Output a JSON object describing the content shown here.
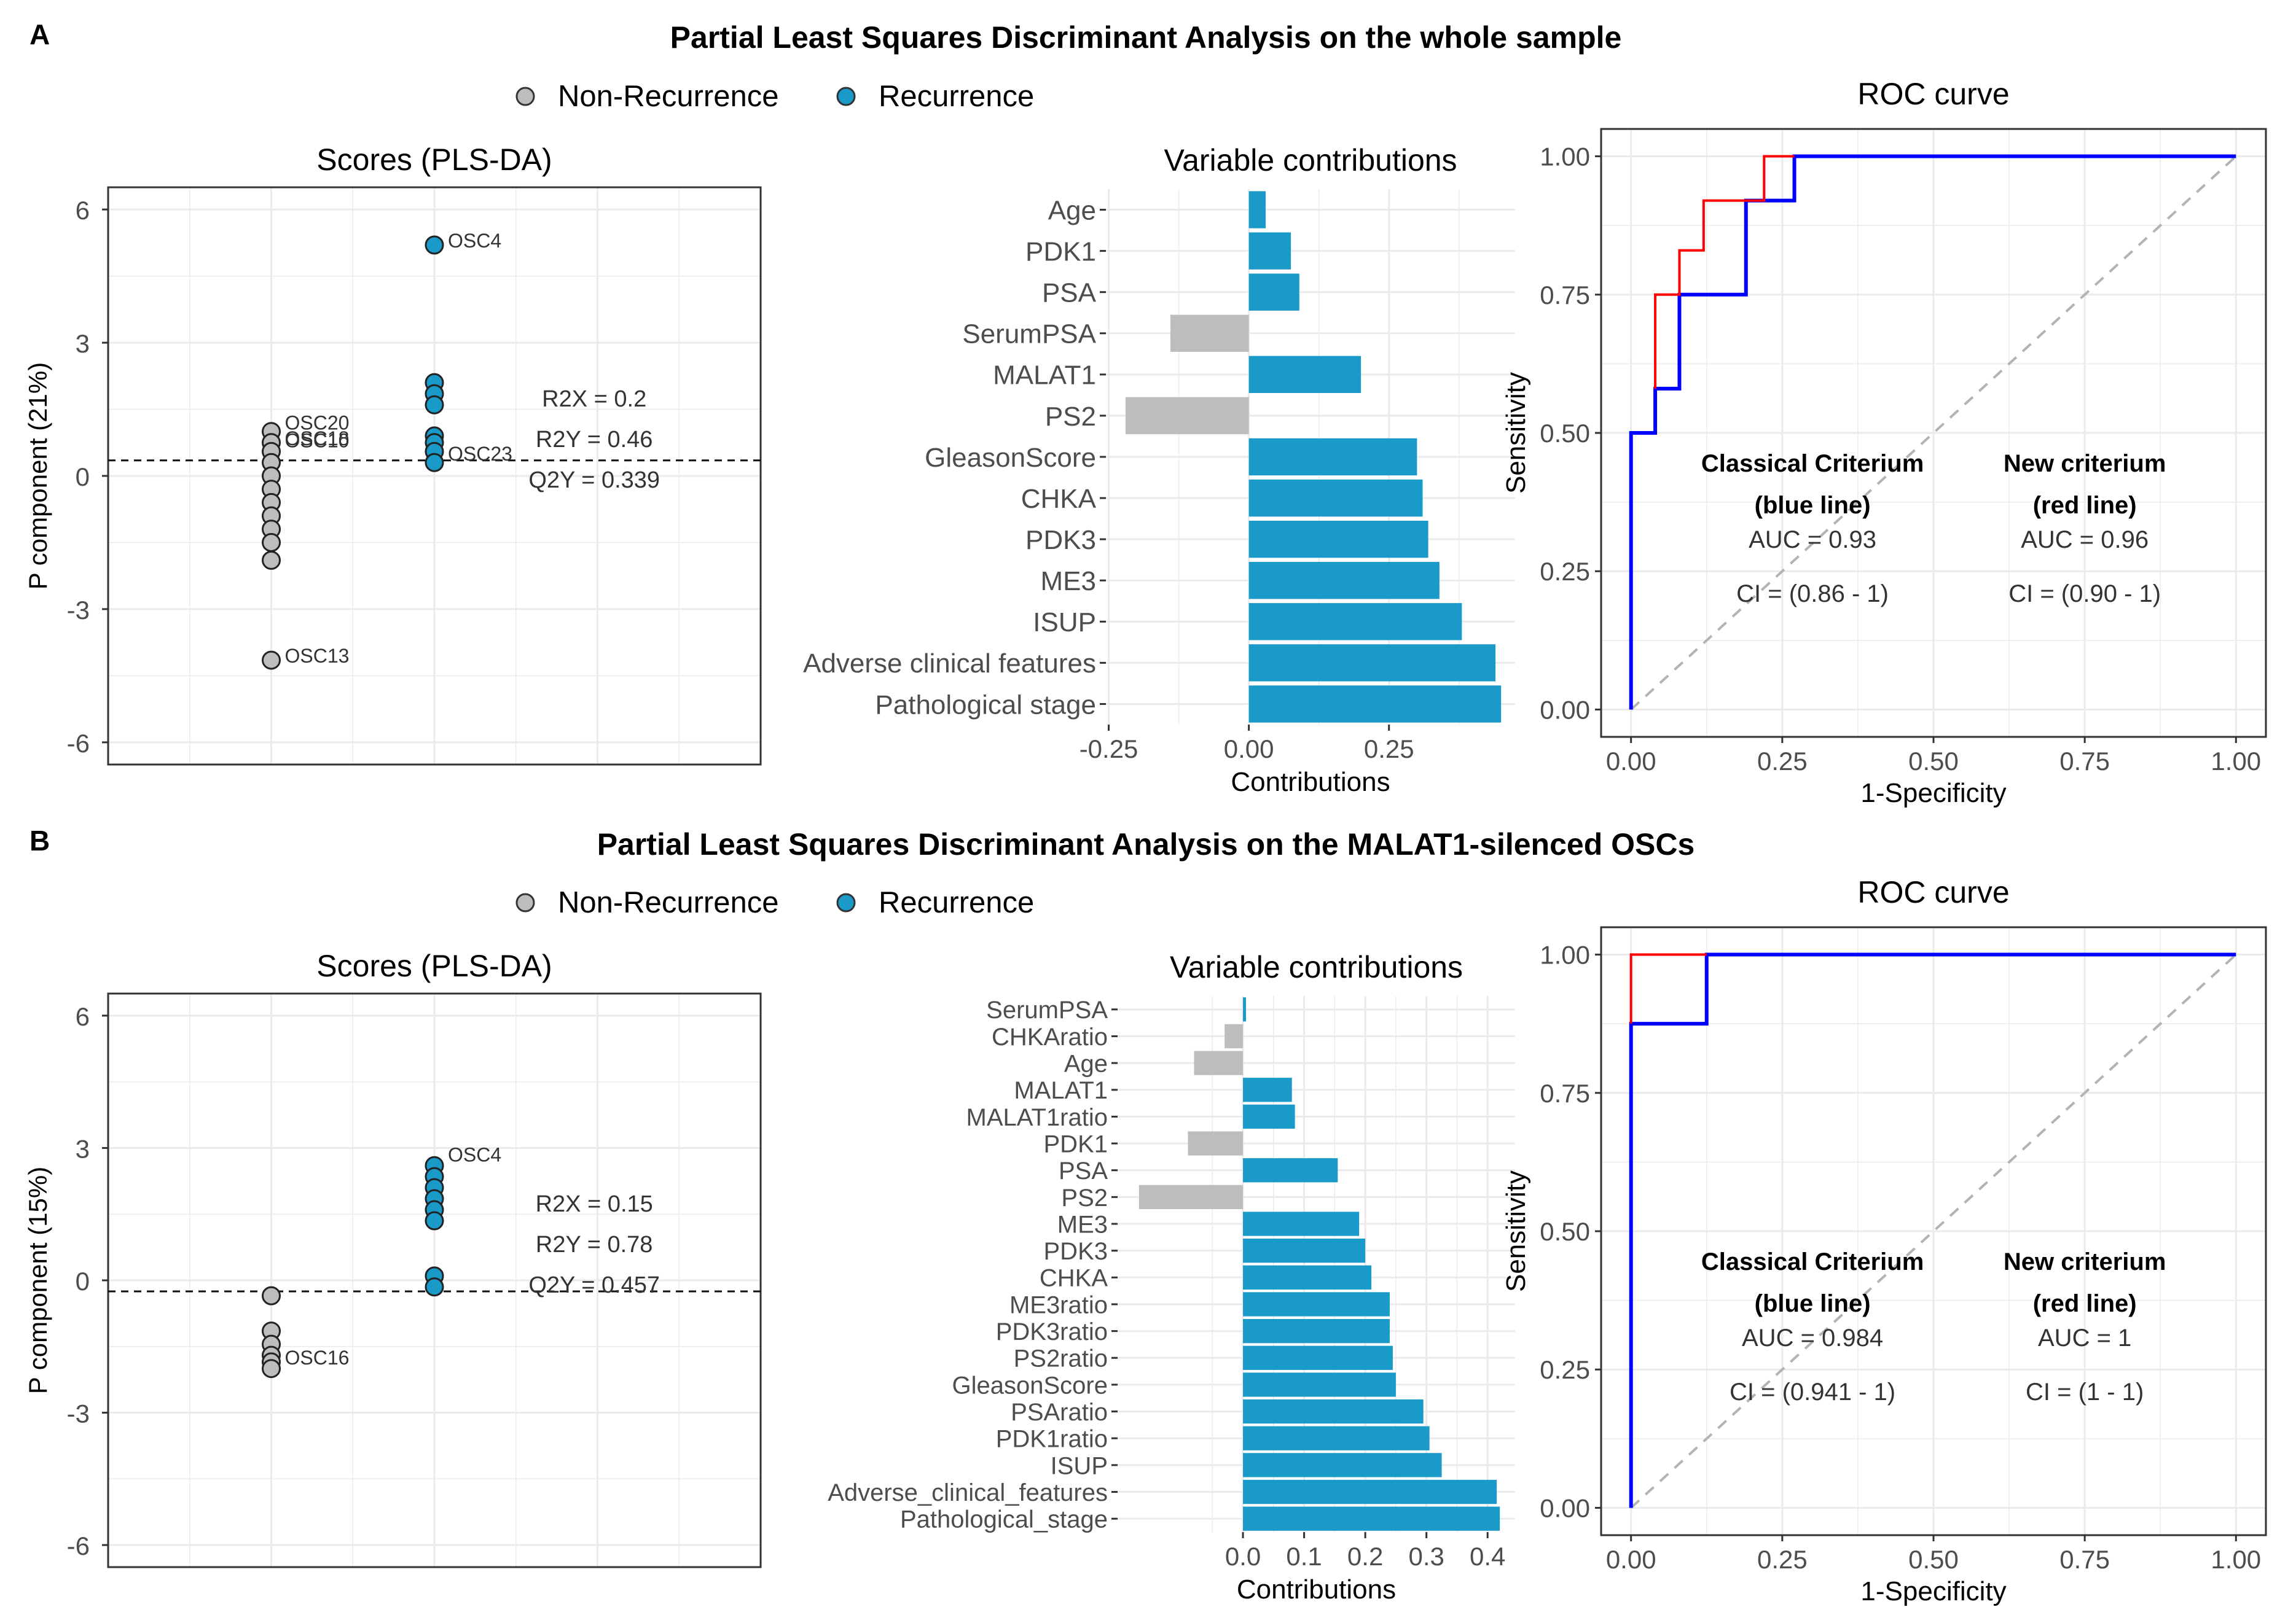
{
  "panels": [
    {
      "label": "A",
      "title": "Partial Least Squares Discriminant Analysis on the whole sample",
      "legend": [
        {
          "name": "Non-Recurrence",
          "color": "#bdbdbd"
        },
        {
          "name": "Recurrence",
          "color": "#1a9ac9"
        }
      ]
    },
    {
      "label": "B",
      "title": "Partial Least Squares Discriminant Analysis on the MALAT1-silenced OSCs",
      "legend": [
        {
          "name": "Non-Recurrence",
          "color": "#bdbdbd"
        },
        {
          "name": "Recurrence",
          "color": "#1a9ac9"
        }
      ]
    }
  ],
  "chart_data": [
    {
      "type": "scatter",
      "panel": "A",
      "title": "Scores (PLS-DA)",
      "ylabel": "P component (21%)",
      "xlabel": "",
      "ylim": [
        -6.5,
        6.5
      ],
      "yticks": [
        6,
        3,
        0,
        -3,
        -6
      ],
      "threshold": 0.35,
      "groups": [
        "Non-Recurrence",
        "Recurrence"
      ],
      "colors": {
        "Non-Recurrence": "#bdbdbd",
        "Recurrence": "#1a9ac9"
      },
      "series": [
        {
          "name": "Non-Recurrence",
          "values": [
            1.0,
            0.75,
            0.55,
            0.3,
            0.0,
            -0.3,
            -0.6,
            -0.9,
            -1.2,
            -1.5,
            -1.9,
            -4.15
          ]
        },
        {
          "name": "Recurrence",
          "values": [
            5.2,
            2.1,
            1.85,
            1.6,
            0.9,
            0.75,
            0.55,
            0.3
          ]
        }
      ],
      "point_labels": [
        {
          "text": "OSC4",
          "group": "Recurrence",
          "y": 5.2
        },
        {
          "text": "OSC20",
          "group": "Non-Recurrence",
          "y": 1.1
        },
        {
          "text": "OSC18",
          "group": "Non-Recurrence",
          "y": 0.75
        },
        {
          "text": "OSC10",
          "group": "Non-Recurrence",
          "y": 0.7
        },
        {
          "text": "OSC23",
          "group": "Recurrence",
          "y": 0.4
        },
        {
          "text": "OSC13",
          "group": "Non-Recurrence",
          "y": -4.15
        }
      ],
      "stats": [
        "R2X = 0.2",
        "R2Y = 0.46",
        "Q2Y = 0.339"
      ]
    },
    {
      "type": "bar",
      "panel": "A",
      "title": "Variable contributions",
      "xlabel": "Contributions",
      "xlim": [
        -0.255,
        0.475
      ],
      "xticks": [
        -0.25,
        0.0,
        0.25
      ],
      "xtick_labels": [
        "-0.25",
        "0.00",
        "0.25"
      ],
      "categories": [
        "Age",
        "PDK1",
        "PSA",
        "SerumPSA",
        "MALAT1",
        "PS2",
        "GleasonScore",
        "CHKA",
        "PDK3",
        "ME3",
        "ISUP",
        "Adverse clinical features",
        "Pathological stage"
      ],
      "values": [
        0.03,
        0.075,
        0.09,
        -0.14,
        0.2,
        -0.22,
        0.3,
        0.31,
        0.32,
        0.34,
        0.38,
        0.44,
        0.45
      ]
    },
    {
      "type": "line",
      "panel": "A",
      "title": "ROC curve",
      "xlabel": "1-Specificity",
      "ylabel": "Sensitivity",
      "xlim": [
        0,
        1
      ],
      "ylim": [
        0,
        1
      ],
      "xticks": [
        "0.00",
        "0.25",
        "0.50",
        "0.75",
        "1.00"
      ],
      "yticks": [
        "0.00",
        "0.25",
        "0.50",
        "0.75",
        "1.00"
      ],
      "series": [
        {
          "name": "Classical Criterium (blue line)",
          "color": "#0000ff",
          "x": [
            0,
            0,
            0.04,
            0.04,
            0.08,
            0.08,
            0.19,
            0.19,
            0.27,
            0.27,
            1
          ],
          "y": [
            0,
            0.5,
            0.5,
            0.58,
            0.58,
            0.75,
            0.75,
            0.92,
            0.92,
            1,
            1
          ]
        },
        {
          "name": "New criterium (red line)",
          "color": "#ff0000",
          "x": [
            0.04,
            0.04,
            0.06,
            0.06,
            0.08,
            0.08,
            0.12,
            0.12,
            0.22,
            0.22,
            0.27
          ],
          "y": [
            0.58,
            0.75,
            0.75,
            0.75,
            0.75,
            0.83,
            0.83,
            0.92,
            0.92,
            1,
            1
          ]
        }
      ],
      "annotations": [
        {
          "header": "Classical Criterium",
          "sub": "(blue line)",
          "auc": "AUC = 0.93",
          "ci": "CI = (0.86 - 1)"
        },
        {
          "header": "New criterium",
          "sub": "(red line)",
          "auc": "AUC = 0.96",
          "ci": "CI = (0.90 - 1)"
        }
      ]
    },
    {
      "type": "scatter",
      "panel": "B",
      "title": "Scores (PLS-DA)",
      "ylabel": "P component (15%)",
      "xlabel": "",
      "ylim": [
        -6.5,
        6.5
      ],
      "yticks": [
        6,
        3,
        0,
        -3,
        -6
      ],
      "threshold": -0.25,
      "groups": [
        "Non-Recurrence",
        "Recurrence"
      ],
      "colors": {
        "Non-Recurrence": "#bdbdbd",
        "Recurrence": "#1a9ac9"
      },
      "series": [
        {
          "name": "Non-Recurrence",
          "values": [
            -0.35,
            -1.15,
            -1.45,
            -1.7,
            -1.85,
            -2.0
          ]
        },
        {
          "name": "Recurrence",
          "values": [
            2.6,
            2.35,
            2.1,
            1.85,
            1.6,
            1.35,
            0.1,
            -0.15
          ]
        }
      ],
      "point_labels": [
        {
          "text": "OSC4",
          "group": "Recurrence",
          "y": 2.75
        },
        {
          "text": "OSC16",
          "group": "Non-Recurrence",
          "y": -1.85
        }
      ],
      "stats": [
        "R2X = 0.15",
        "R2Y = 0.78",
        "Q2Y = 0.457"
      ]
    },
    {
      "type": "bar",
      "panel": "B",
      "title": "Variable contributions",
      "xlabel": "Contributions",
      "xlim": [
        -0.205,
        0.445
      ],
      "xticks": [
        0.0,
        0.1,
        0.2,
        0.3,
        0.4
      ],
      "xtick_labels": [
        "0.0",
        "0.1",
        "0.2",
        "0.3",
        "0.4"
      ],
      "categories": [
        "SerumPSA",
        "CHKAratio",
        "Age",
        "MALAT1",
        "MALAT1ratio",
        "PDK1",
        "PSA",
        "PS2",
        "ME3",
        "PDK3",
        "CHKA",
        "ME3ratio",
        "PDK3ratio",
        "PS2ratio",
        "GleasonScore",
        "PSAratio",
        "PDK1ratio",
        "ISUP",
        "Adverse_clinical_features",
        "Pathological_stage"
      ],
      "values": [
        0.005,
        -0.03,
        -0.08,
        0.08,
        0.085,
        -0.09,
        0.155,
        -0.17,
        0.19,
        0.2,
        0.21,
        0.24,
        0.24,
        0.245,
        0.25,
        0.295,
        0.305,
        0.325,
        0.415,
        0.42
      ]
    },
    {
      "type": "line",
      "panel": "B",
      "title": "ROC curve",
      "xlabel": "1-Specificity",
      "ylabel": "Sensitivity",
      "xlim": [
        0,
        1
      ],
      "ylim": [
        0,
        1
      ],
      "xticks": [
        "0.00",
        "0.25",
        "0.50",
        "0.75",
        "1.00"
      ],
      "yticks": [
        "0.00",
        "0.25",
        "0.50",
        "0.75",
        "1.00"
      ],
      "series": [
        {
          "name": "Classical Criterium (blue line)",
          "color": "#0000ff",
          "x": [
            0,
            0,
            0.125,
            0.125,
            1
          ],
          "y": [
            0,
            0.875,
            0.875,
            1,
            1
          ]
        },
        {
          "name": "New criterium (red line)",
          "color": "#ff0000",
          "x": [
            0,
            0,
            0.125
          ],
          "y": [
            0.875,
            1,
            1
          ]
        }
      ],
      "annotations": [
        {
          "header": "Classical Criterium",
          "sub": "(blue line)",
          "auc": "AUC = 0.984",
          "ci": "CI = (0.941 - 1)"
        },
        {
          "header": "New criterium",
          "sub": "(red line)",
          "auc": "AUC = 1",
          "ci": "CI = (1 - 1)"
        }
      ]
    }
  ]
}
